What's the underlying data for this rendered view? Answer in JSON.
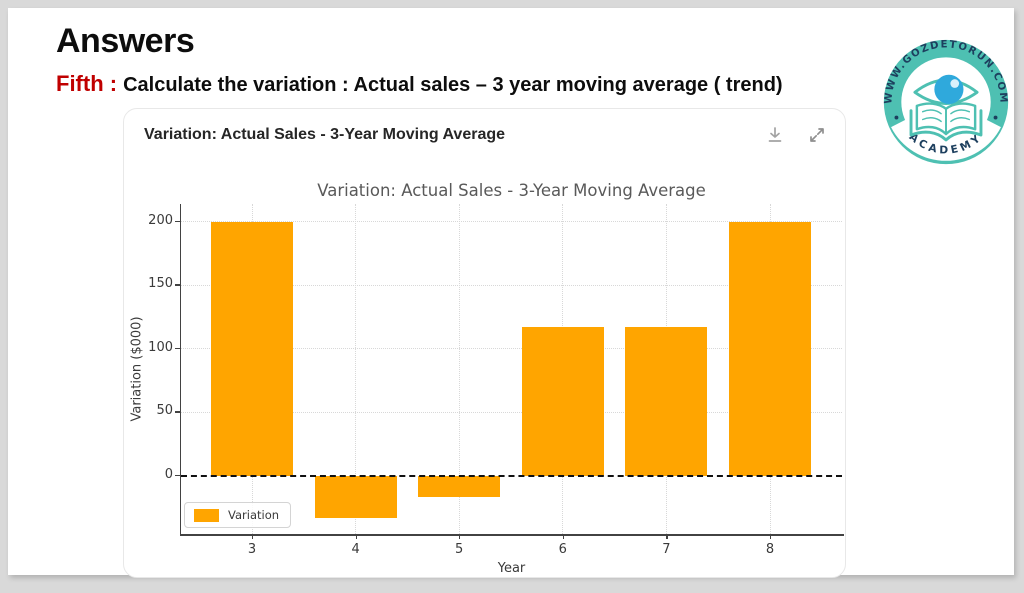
{
  "page": {
    "background": "#d9d9d9",
    "slide_background": "#ffffff"
  },
  "slide": {
    "heading": "Answers",
    "question_label": "Fifth :",
    "question_text": "Calculate the variation : Actual sales – 3 year moving average ( trend)",
    "accent_red": "#C00000"
  },
  "logo": {
    "top_text": "WWW.GOZDETORUN.COM",
    "bottom_text": "ACADEMY",
    "teal": "#4EC0B2",
    "navy": "#1D3F5E",
    "blue": "#2FA9DC"
  },
  "card": {
    "title": "Variation: Actual Sales - 3-Year Moving Average",
    "icons": [
      "download",
      "expand"
    ]
  },
  "chart_data": {
    "type": "bar",
    "title": "Variation: Actual Sales - 3-Year Moving Average",
    "xlabel": "Year",
    "ylabel": "Variation ($000)",
    "categories": [
      "3",
      "4",
      "5",
      "6",
      "7",
      "8"
    ],
    "values": [
      200,
      -33.3,
      -16.7,
      116.7,
      116.7,
      200
    ],
    "yticks": [
      0,
      50,
      100,
      150,
      200
    ],
    "ylim": [
      -46,
      214
    ],
    "bar_color": "#FFA500",
    "grid": true,
    "zero_line": {
      "style": "dashed",
      "color": "#111111",
      "y": 0
    },
    "legend": {
      "position": "lower-left",
      "entries": [
        {
          "label": "Variation",
          "color": "#FFA500"
        }
      ]
    }
  }
}
